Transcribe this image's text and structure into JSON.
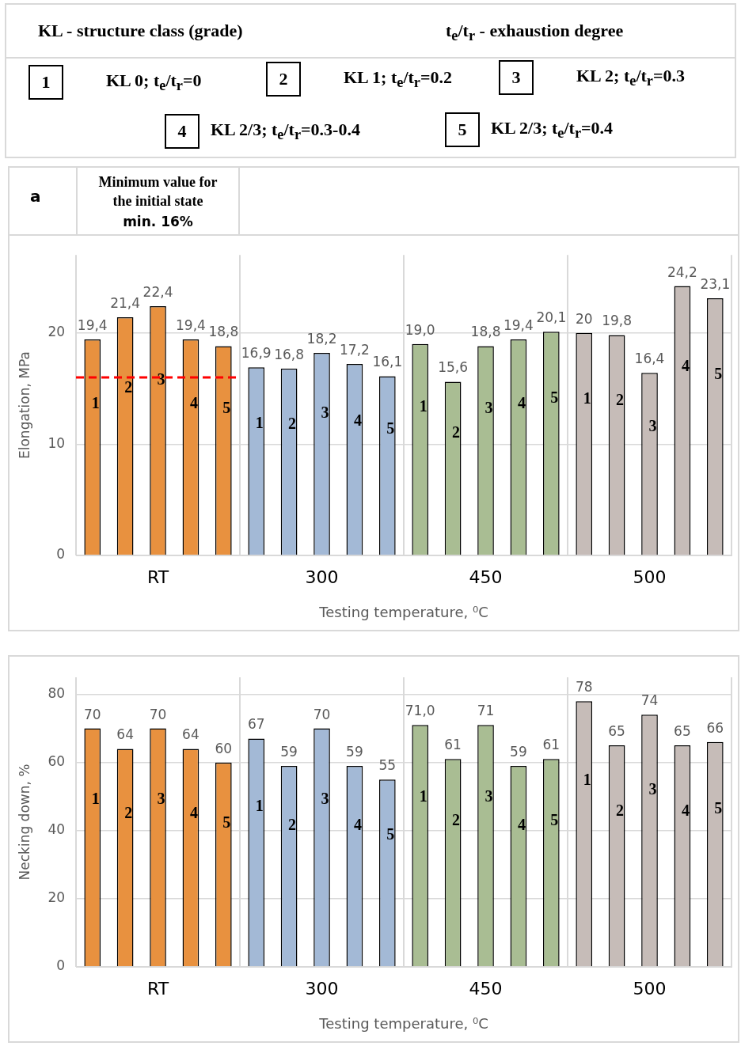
{
  "chart_data": [
    {
      "type": "other",
      "annotations": [
        "KL - structure class (grade)",
        "t$_{e}$/t$_{r}$ - exhaustion degree",
        "1",
        "KL 0; t$_{e}$/t$_{r}$=0",
        "2",
        "KL 1; t$_{e}$/t$_{r}$=0.2",
        "3",
        "KL 2; t$_{e}$/t$_{r}$=0.3",
        "4",
        "KL 2/3; t$_{e}$/t$_{r}$=0.3-0.4",
        "5",
        "KL 2/3; t$_{e}$/t$_{r}$=0.4"
      ]
    },
    {
      "type": "bar",
      "title": "a",
      "xlabel": "Testing temperature, ⁰C",
      "ylabel": "Elongation, MPa",
      "categories": [
        "RT",
        "300",
        "450",
        "500"
      ],
      "series": [
        {
          "name": "1",
          "colors": [
            "#e8913f",
            "#a3b9d6",
            "#a9bd93",
            "#c6bcb8"
          ],
          "values": [
            19.4,
            16.9,
            19.0,
            20
          ],
          "value_labels": [
            "19,4",
            "16,9",
            "19,0",
            "20"
          ]
        },
        {
          "name": "2",
          "colors": [
            "#e8913f",
            "#a3b9d6",
            "#a9bd93",
            "#c6bcb8"
          ],
          "values": [
            21.4,
            16.8,
            15.6,
            19.8
          ],
          "value_labels": [
            "21,4",
            "16,8",
            "15,6",
            "19,8"
          ]
        },
        {
          "name": "3",
          "colors": [
            "#e8913f",
            "#a3b9d6",
            "#a9bd93",
            "#c6bcb8"
          ],
          "values": [
            22.4,
            18.2,
            18.8,
            16.4
          ],
          "value_labels": [
            "22,4",
            "18,2",
            "18,8",
            "16,4"
          ]
        },
        {
          "name": "4",
          "colors": [
            "#e8913f",
            "#a3b9d6",
            "#a9bd93",
            "#c6bcb8"
          ],
          "values": [
            19.4,
            17.2,
            19.4,
            24.2
          ],
          "value_labels": [
            "19,4",
            "17,2",
            "19,4",
            "24,2"
          ]
        },
        {
          "name": "5",
          "colors": [
            "#e8913f",
            "#a3b9d6",
            "#a9bd93",
            "#c6bcb8"
          ],
          "values": [
            18.8,
            16.1,
            20.1,
            23.1
          ],
          "value_labels": [
            "18,8",
            "16,1",
            "20,1",
            "23,1"
          ]
        }
      ],
      "ylim": [
        0,
        27
      ],
      "yticks": [
        0,
        10,
        20
      ],
      "grid": true,
      "legend": false,
      "ref_lines": [
        {
          "axis": "y",
          "value": 16,
          "color": "#ff0000",
          "line_style": "dashed"
        }
      ],
      "annotations": [
        "Minimum value for the initial state",
        "min. 16%"
      ]
    },
    {
      "type": "bar",
      "xlabel": "Testing temperature, ⁰C",
      "ylabel": "Necking down, %",
      "categories": [
        "RT",
        "300",
        "450",
        "500"
      ],
      "series": [
        {
          "name": "1",
          "colors": [
            "#e8913f",
            "#a3b9d6",
            "#a9bd93",
            "#c6bcb8"
          ],
          "values": [
            70,
            67,
            71.0,
            78
          ],
          "value_labels": [
            "70",
            "67",
            "71,0",
            "78"
          ]
        },
        {
          "name": "2",
          "colors": [
            "#e8913f",
            "#a3b9d6",
            "#a9bd93",
            "#c6bcb8"
          ],
          "values": [
            64,
            59,
            61,
            65
          ],
          "value_labels": [
            "64",
            "59",
            "61",
            "65"
          ]
        },
        {
          "name": "3",
          "colors": [
            "#e8913f",
            "#a3b9d6",
            "#a9bd93",
            "#c6bcb8"
          ],
          "values": [
            70,
            70,
            71,
            74
          ],
          "value_labels": [
            "70",
            "70",
            "71",
            "74"
          ]
        },
        {
          "name": "4",
          "colors": [
            "#e8913f",
            "#a3b9d6",
            "#a9bd93",
            "#c6bcb8"
          ],
          "values": [
            64,
            59,
            59,
            65
          ],
          "value_labels": [
            "64",
            "59",
            "59",
            "65"
          ]
        },
        {
          "name": "5",
          "colors": [
            "#e8913f",
            "#a3b9d6",
            "#a9bd93",
            "#c6bcb8"
          ],
          "values": [
            60,
            55,
            61,
            66
          ],
          "value_labels": [
            "60",
            "55",
            "61",
            "66"
          ]
        }
      ],
      "ylim": [
        0,
        85
      ],
      "yticks": [
        0,
        20,
        40,
        60,
        80
      ],
      "grid": true,
      "legend": false
    }
  ]
}
